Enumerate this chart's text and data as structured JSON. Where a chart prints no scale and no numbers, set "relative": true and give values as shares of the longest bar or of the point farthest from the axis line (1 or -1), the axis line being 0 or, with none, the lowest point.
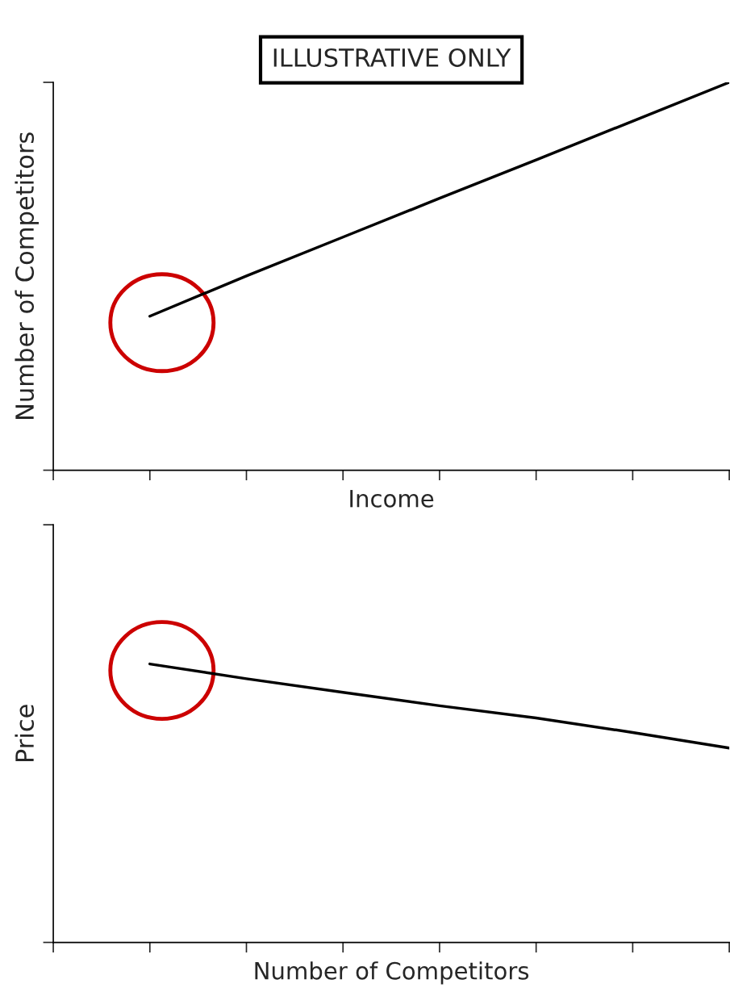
{
  "chart_data": [
    {
      "type": "line",
      "title": "ILLUSTRATIVE ONLY",
      "xlabel": "Income",
      "ylabel": "Number of Competitors",
      "categories": [
        null,
        null,
        null,
        null,
        null,
        null,
        null,
        null
      ],
      "relative": true,
      "tick_labels": false,
      "color": "#000000",
      "values": [
        null,
        0.397,
        0.501,
        0.601,
        0.701,
        0.8,
        0.9,
        1.0
      ]
    },
    {
      "type": "line",
      "xlabel": "Number of Competitors",
      "ylabel": "Price",
      "categories": [
        null,
        null,
        null,
        null,
        null,
        null,
        null,
        null
      ],
      "relative": true,
      "tick_labels": false,
      "color": "#000000",
      "values": [
        null,
        1.0,
        0.947,
        0.898,
        0.85,
        0.806,
        0.754,
        0.698
      ]
    }
  ]
}
